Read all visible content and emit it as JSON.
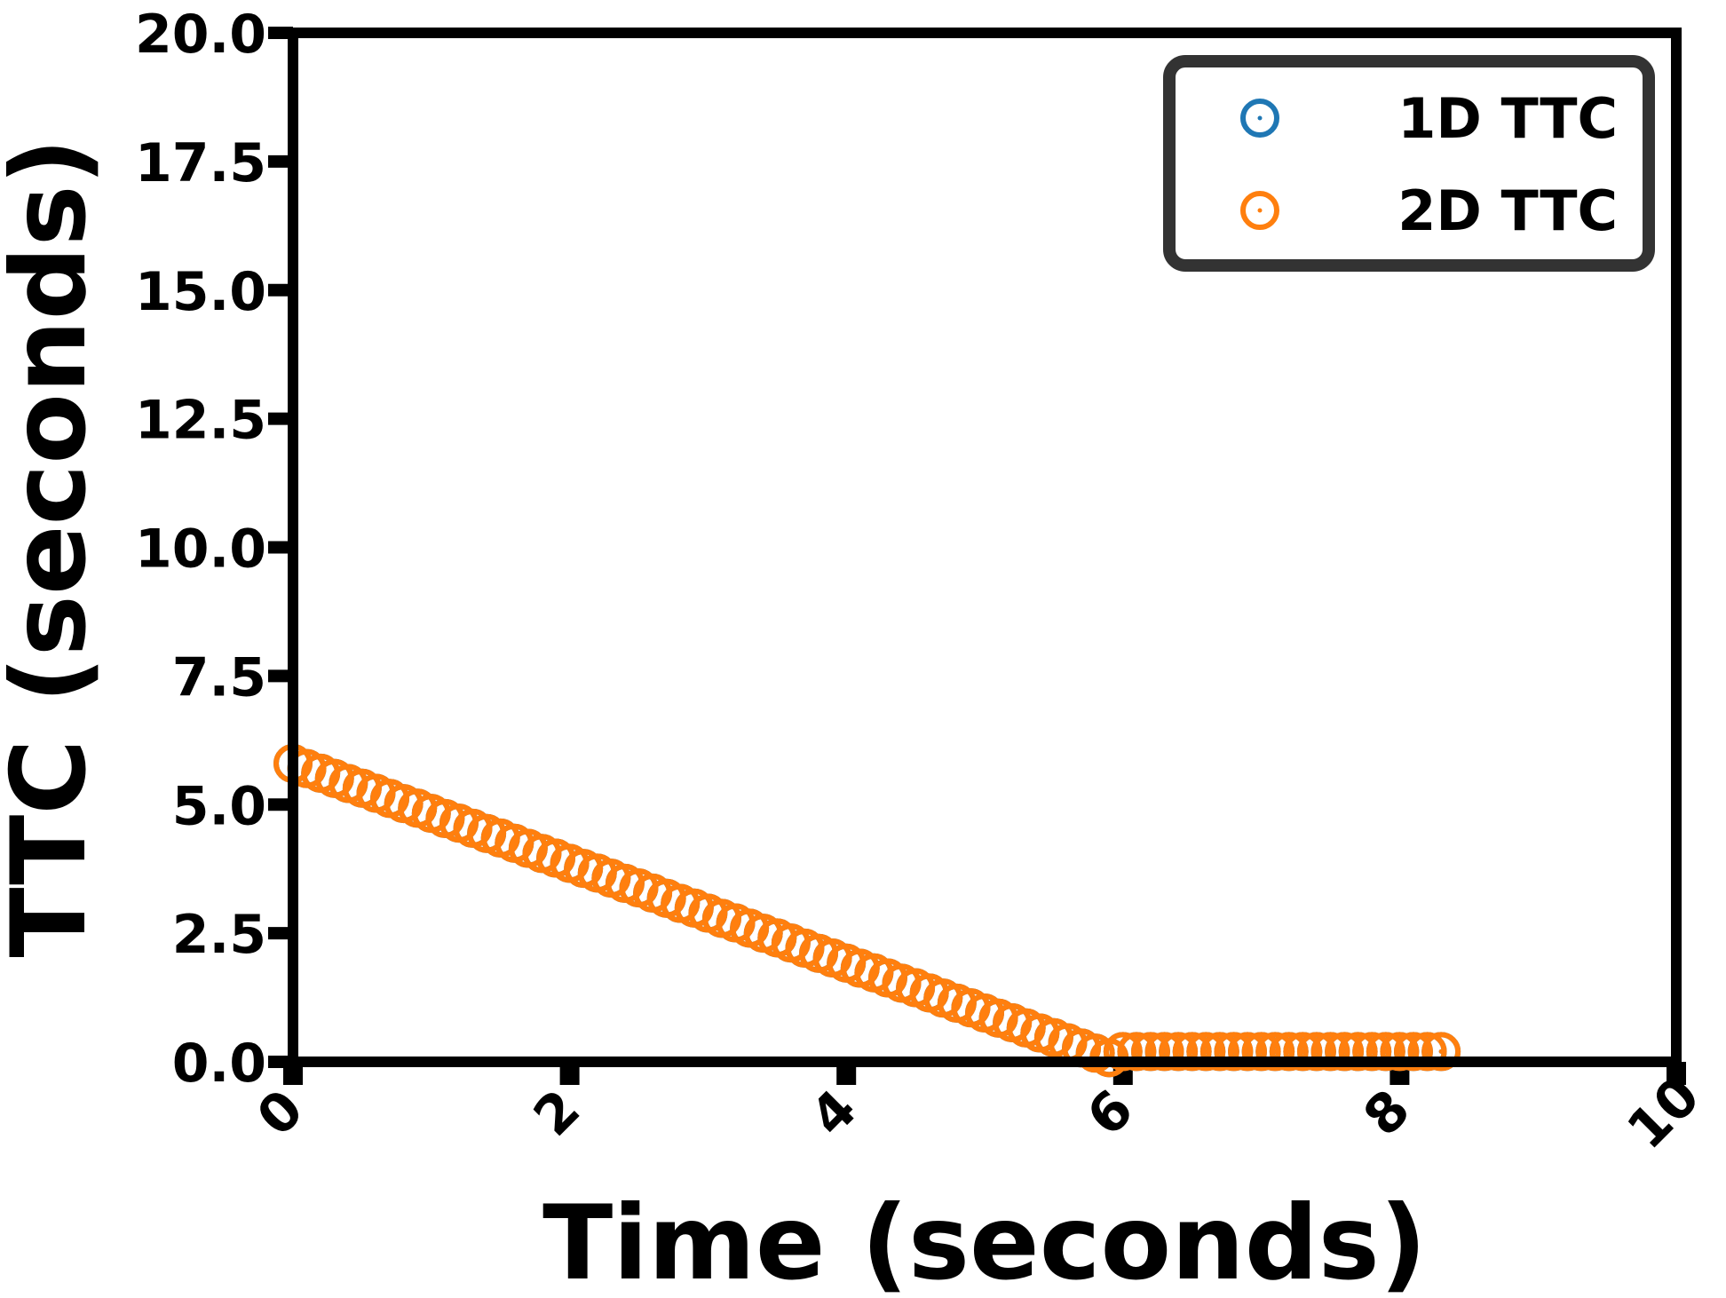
{
  "chart_data": {
    "type": "scatter",
    "xlabel": "Time (seconds)",
    "ylabel": "TTC (seconds)",
    "x": [
      0,
      0.1,
      0.2,
      0.3,
      0.4,
      0.5,
      0.6,
      0.7,
      0.8,
      0.9,
      1,
      1.1,
      1.2,
      1.3,
      1.4,
      1.5,
      1.6,
      1.7,
      1.8,
      1.9,
      2,
      2.1,
      2.2,
      2.3,
      2.4,
      2.5,
      2.6,
      2.7,
      2.8,
      2.9,
      3,
      3.1,
      3.2,
      3.3,
      3.4,
      3.5,
      3.6,
      3.7,
      3.8,
      3.9,
      4,
      4.1,
      4.2,
      4.3,
      4.4,
      4.5,
      4.6,
      4.7,
      4.8,
      4.9,
      5,
      5.1,
      5.2,
      5.3,
      5.4,
      5.5,
      5.6,
      5.7,
      5.8,
      5.9,
      6,
      6.1,
      6.2,
      6.3,
      6.4,
      6.5,
      6.6,
      6.7,
      6.8,
      6.9,
      7,
      7.1,
      7.2,
      7.3,
      7.4,
      7.5,
      7.6,
      7.7,
      7.8,
      7.9,
      8,
      8.1,
      8.2,
      8.3
    ],
    "series": [
      {
        "name": "1D TTC",
        "color": "#1f77b4",
        "values": [
          5.8,
          5.7,
          5.61,
          5.51,
          5.41,
          5.32,
          5.22,
          5.12,
          5.02,
          4.93,
          4.83,
          4.73,
          4.64,
          4.54,
          4.44,
          4.35,
          4.25,
          4.15,
          4.05,
          3.96,
          3.86,
          3.76,
          3.67,
          3.57,
          3.47,
          3.38,
          3.28,
          3.18,
          3.08,
          2.99,
          2.89,
          2.79,
          2.7,
          2.6,
          2.5,
          2.41,
          2.31,
          2.21,
          2.11,
          2.02,
          1.92,
          1.82,
          1.73,
          1.63,
          1.53,
          1.44,
          1.34,
          1.24,
          1.14,
          1.05,
          0.95,
          0.85,
          0.76,
          0.66,
          0.56,
          0.47,
          0.37,
          0.27,
          0.17,
          0.08,
          0.2,
          0.2,
          0.2,
          0.2,
          0.2,
          0.2,
          0.2,
          0.2,
          0.2,
          0.2,
          0.2,
          0.2,
          0.2,
          0.2,
          0.2,
          0.2,
          0.2,
          0.2,
          0.2,
          0.2,
          0.2,
          0.2,
          0.2,
          0.2
        ]
      },
      {
        "name": "2D TTC",
        "color": "#ff7f0e",
        "values": [
          5.8,
          5.7,
          5.61,
          5.51,
          5.41,
          5.32,
          5.22,
          5.12,
          5.02,
          4.93,
          4.83,
          4.73,
          4.64,
          4.54,
          4.44,
          4.35,
          4.25,
          4.15,
          4.05,
          3.96,
          3.86,
          3.76,
          3.67,
          3.57,
          3.47,
          3.38,
          3.28,
          3.18,
          3.08,
          2.99,
          2.89,
          2.79,
          2.7,
          2.6,
          2.5,
          2.41,
          2.31,
          2.21,
          2.11,
          2.02,
          1.92,
          1.82,
          1.73,
          1.63,
          1.53,
          1.44,
          1.34,
          1.24,
          1.14,
          1.05,
          0.95,
          0.85,
          0.76,
          0.66,
          0.56,
          0.47,
          0.37,
          0.27,
          0.17,
          0.08,
          0.2,
          0.2,
          0.2,
          0.2,
          0.2,
          0.2,
          0.2,
          0.2,
          0.2,
          0.2,
          0.2,
          0.2,
          0.2,
          0.2,
          0.2,
          0.2,
          0.2,
          0.2,
          0.2,
          0.2,
          0.2,
          0.2,
          0.2,
          0.2
        ]
      }
    ],
    "xlim": [
      0,
      10
    ],
    "xticks": [
      0,
      2,
      4,
      6,
      8,
      10
    ],
    "ylim": [
      0,
      20
    ],
    "yticks": [
      {
        "value": 0,
        "label": "0.0"
      },
      2.5,
      {
        "value": 5,
        "label": "5.0"
      },
      7.5,
      {
        "value": 10,
        "label": "10.0"
      },
      12.5,
      {
        "value": 15,
        "label": "15.0"
      },
      17.5,
      {
        "value": 20,
        "label": "20.0"
      }
    ],
    "legend": "upper right",
    "grid": false
  }
}
